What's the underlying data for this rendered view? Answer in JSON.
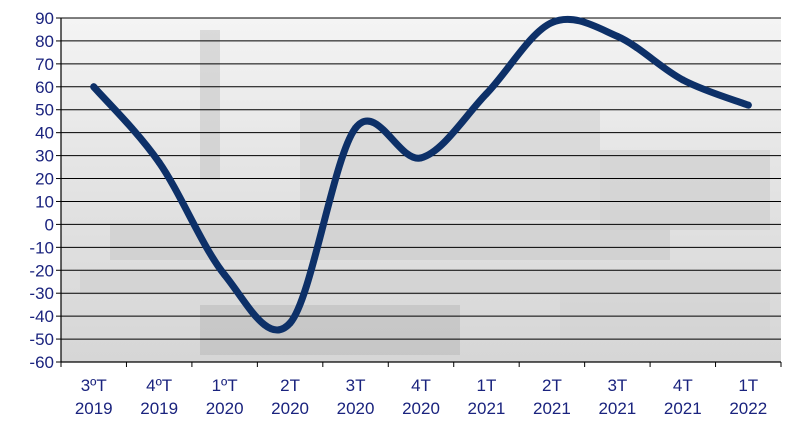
{
  "chart_data": {
    "type": "line",
    "title": "",
    "xlabel": "",
    "ylabel": "",
    "categories": [
      [
        "3ºT",
        "2019"
      ],
      [
        "4ºT",
        "2019"
      ],
      [
        "1ºT",
        "2020"
      ],
      [
        "2T",
        "2020"
      ],
      [
        "3T",
        "2020"
      ],
      [
        "4T",
        "2020"
      ],
      [
        "1T",
        "2021"
      ],
      [
        "2T",
        "2021"
      ],
      [
        "3T",
        "2021"
      ],
      [
        "4T",
        "2021"
      ],
      [
        "1T",
        "2022"
      ]
    ],
    "series": [
      {
        "values": [
          60,
          27,
          -22,
          -43,
          42,
          29,
          57,
          88,
          82,
          63,
          52
        ]
      }
    ],
    "ylim": [
      -60,
      90
    ],
    "yticks": [
      90,
      80,
      70,
      60,
      50,
      40,
      30,
      20,
      10,
      0,
      -10,
      -20,
      -30,
      -40,
      -50,
      -60
    ],
    "grid": true,
    "line_style": "smooth",
    "colors": {
      "line": "#0d3068",
      "labels": "#1a237e",
      "grid": "#000000",
      "background_photo": "#d9d9d9"
    }
  }
}
